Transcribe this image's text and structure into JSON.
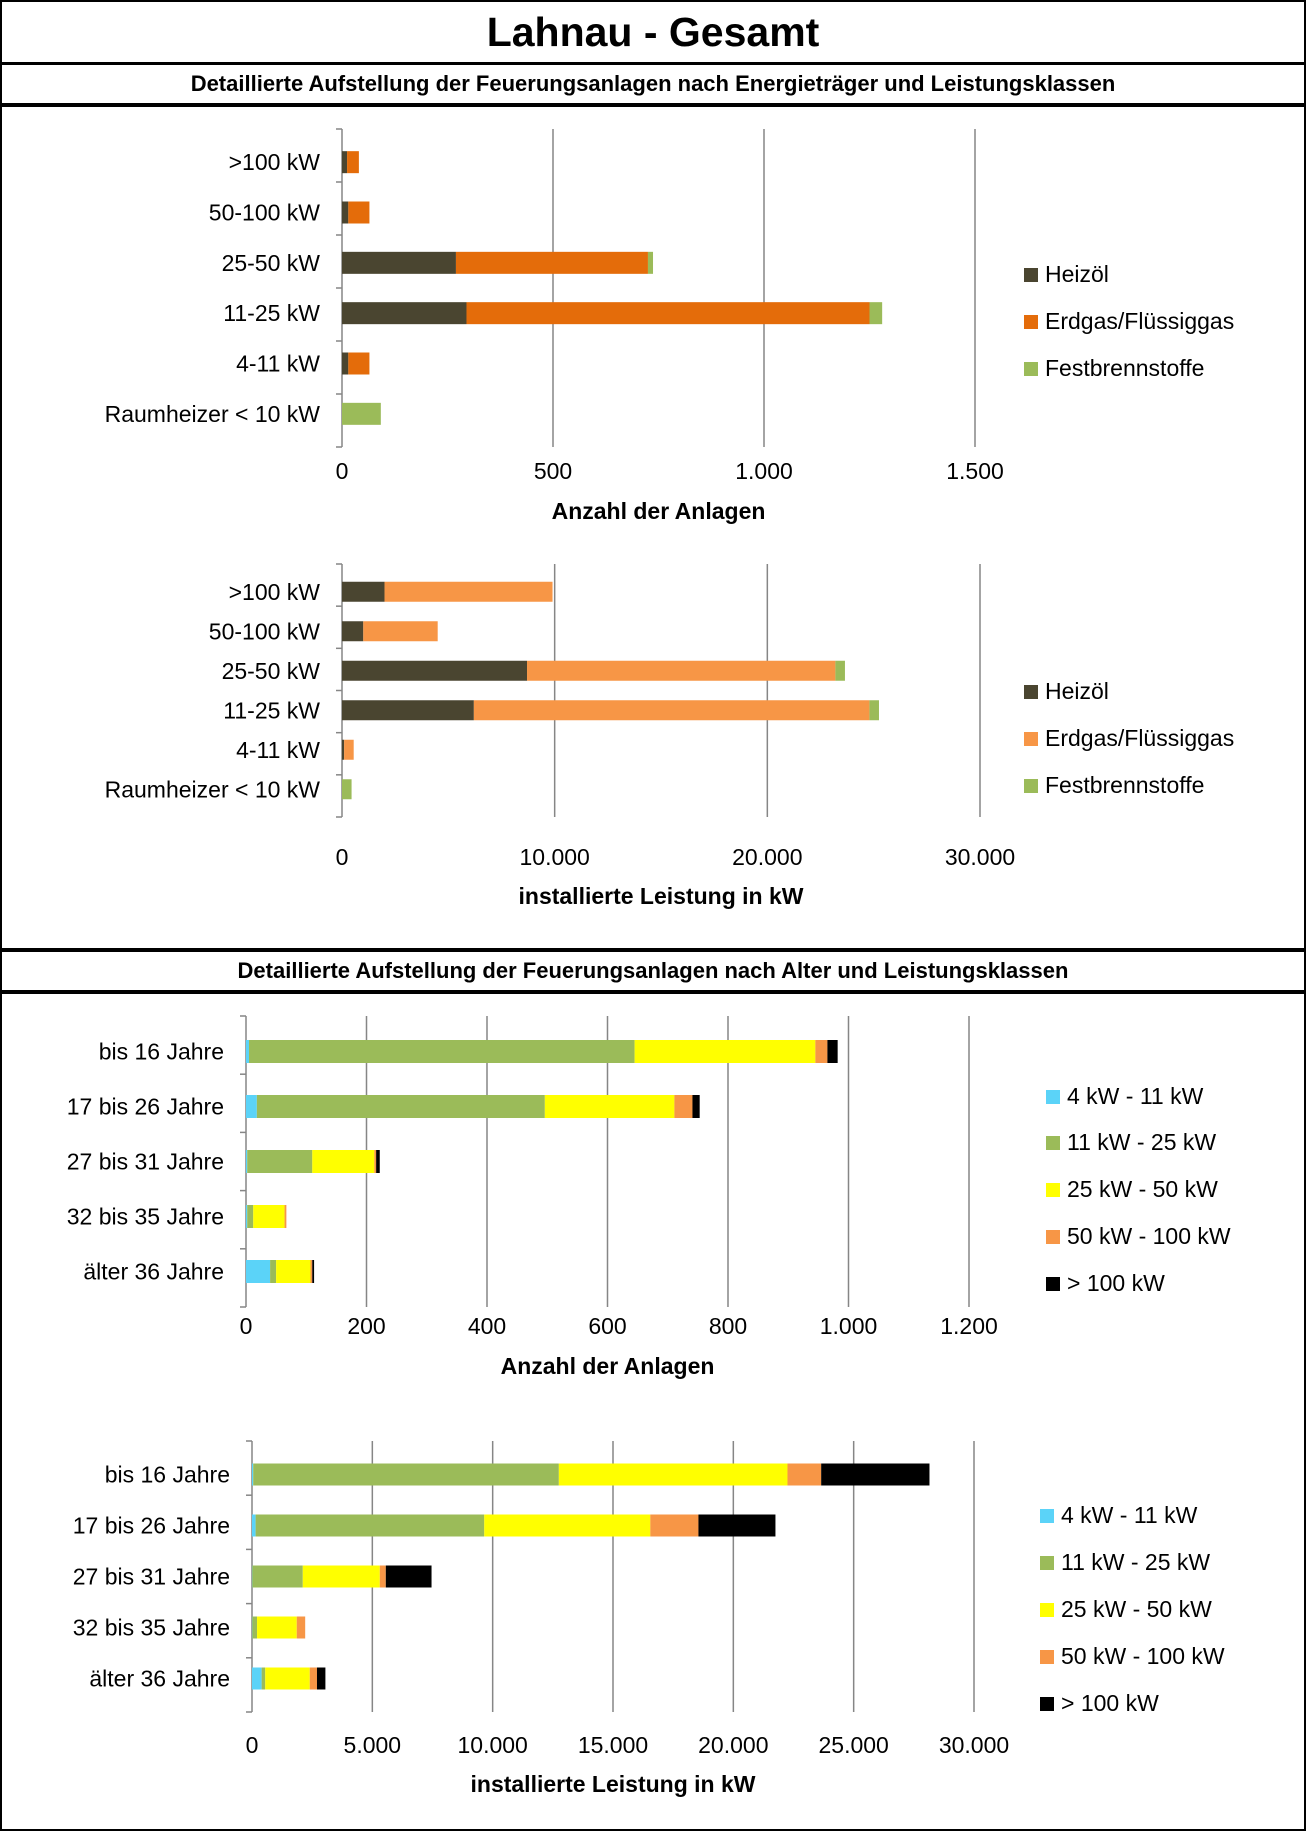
{
  "page": {
    "title": "Lahnau - Gesamt",
    "section1_heading": "Detaillierte Aufstellung der Feuerungsanlagen nach Energieträger und Leistungsklassen",
    "section2_heading": "Detaillierte Aufstellung der Feuerungsanlagen nach Alter und Leistungsklassen"
  },
  "chart_data": [
    {
      "type": "bar",
      "orientation": "horizontal",
      "stacked": true,
      "categories": [
        ">100 kW",
        "50-100 kW",
        "25-50 kW",
        "11-25 kW",
        "4-11 kW",
        "Raumheizer < 10 kW"
      ],
      "series": [
        {
          "name": "Heizöl",
          "color": "#4a4530",
          "values": [
            12,
            15,
            270,
            295,
            15,
            0
          ]
        },
        {
          "name": "Erdgas/Flüssiggas",
          "color": "#e46c0a",
          "values": [
            28,
            50,
            455,
            955,
            50,
            0
          ]
        },
        {
          "name": "Festbrennstoffe",
          "color": "#9bbb59",
          "values": [
            0,
            0,
            12,
            30,
            0,
            92
          ]
        }
      ],
      "xlabel": "Anzahl der Anlagen",
      "xlim": [
        0,
        1500
      ],
      "xticks": [
        0,
        500,
        1000,
        1500
      ],
      "xtick_labels": [
        "0",
        "500",
        "1.000",
        "1.500"
      ],
      "grid": true,
      "legend": "right"
    },
    {
      "type": "bar",
      "orientation": "horizontal",
      "stacked": true,
      "categories": [
        ">100 kW",
        "50-100 kW",
        "25-50 kW",
        "11-25 kW",
        "4-11 kW",
        "Raumheizer < 10 kW"
      ],
      "series": [
        {
          "name": "Heizöl",
          "color": "#4a4530",
          "values": [
            2000,
            1000,
            8700,
            6200,
            100,
            0
          ]
        },
        {
          "name": "Erdgas/Flüssiggas",
          "color": "#f79646",
          "values": [
            7900,
            3500,
            14500,
            18600,
            450,
            0
          ]
        },
        {
          "name": "Festbrennstoffe",
          "color": "#9bbb59",
          "values": [
            0,
            0,
            450,
            450,
            0,
            450
          ]
        }
      ],
      "xlabel": "installierte Leistung in kW",
      "xlim": [
        0,
        30000
      ],
      "xticks": [
        0,
        10000,
        20000,
        30000
      ],
      "xtick_labels": [
        "0",
        "10.000",
        "20.000",
        "30.000"
      ],
      "grid": true,
      "legend": "right"
    },
    {
      "type": "bar",
      "orientation": "horizontal",
      "stacked": true,
      "categories": [
        "bis 16 Jahre",
        "17 bis 26 Jahre",
        "27 bis 31 Jahre",
        "32 bis 35 Jahre",
        "älter 36 Jahre"
      ],
      "series": [
        {
          "name": "4 kW - 11 kW",
          "color": "#5bd3f8",
          "values": [
            5,
            18,
            2,
            2,
            40
          ]
        },
        {
          "name": "11 kW - 25 kW",
          "color": "#9bbb59",
          "values": [
            640,
            478,
            108,
            10,
            10
          ]
        },
        {
          "name": "25 kW - 50 kW",
          "color": "#ffff00",
          "values": [
            300,
            215,
            103,
            52,
            57
          ]
        },
        {
          "name": "50 kW - 100 kW",
          "color": "#f79646",
          "values": [
            20,
            30,
            3,
            3,
            3
          ]
        },
        {
          "name": "> 100 kW",
          "color": "#000000",
          "values": [
            17,
            12,
            6,
            0,
            3
          ]
        }
      ],
      "xlabel": "Anzahl der Anlagen",
      "xlim": [
        0,
        1200
      ],
      "xticks": [
        0,
        200,
        400,
        600,
        800,
        1000,
        1200
      ],
      "xtick_labels": [
        "0",
        "200",
        "400",
        "600",
        "800",
        "1.000",
        "1.200"
      ],
      "grid": true,
      "legend": "right"
    },
    {
      "type": "bar",
      "orientation": "horizontal",
      "stacked": true,
      "categories": [
        "bis 16 Jahre",
        "17 bis 26 Jahre",
        "27 bis 31 Jahre",
        "32 bis 35 Jahre",
        "älter 36 Jahre"
      ],
      "series": [
        {
          "name": "4 kW - 11 kW",
          "color": "#5bd3f8",
          "values": [
            50,
            150,
            10,
            10,
            400
          ]
        },
        {
          "name": "11 kW - 25 kW",
          "color": "#9bbb59",
          "values": [
            12700,
            9500,
            2100,
            200,
            150
          ]
        },
        {
          "name": "25 kW - 50 kW",
          "color": "#ffff00",
          "values": [
            9500,
            6900,
            3200,
            1650,
            1850
          ]
        },
        {
          "name": "50 kW - 100 kW",
          "color": "#f79646",
          "values": [
            1400,
            2000,
            250,
            350,
            300
          ]
        },
        {
          "name": "> 100 kW",
          "color": "#000000",
          "values": [
            4500,
            3200,
            1900,
            0,
            350
          ]
        }
      ],
      "xlabel": "installierte Leistung in kW",
      "xlim": [
        0,
        30000
      ],
      "xticks": [
        0,
        5000,
        10000,
        15000,
        20000,
        25000,
        30000
      ],
      "xtick_labels": [
        "0",
        "5.000",
        "10.000",
        "15.000",
        "20.000",
        "25.000",
        "30.000"
      ],
      "grid": true,
      "legend": "right"
    }
  ]
}
